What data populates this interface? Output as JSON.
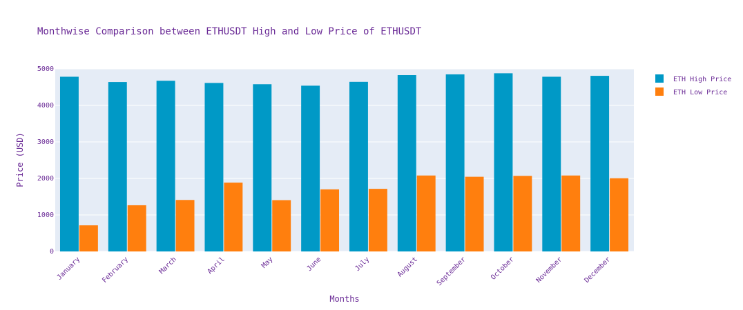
{
  "colors": {
    "text": "#6a2a96",
    "plot_bg": "#e5ecf6",
    "grid": "#ffffff",
    "high": "#0099c6",
    "low": "#ff7f0e"
  },
  "chart_data": {
    "type": "bar",
    "title": "Monthwise Comparison between ETHUSDT High and Low Price of ETHUSDT",
    "xlabel": "Months",
    "ylabel": "Price (USD)",
    "ylim": [
      0,
      5000
    ],
    "yticks": [
      "0",
      "1000",
      "2000",
      "3000",
      "4000",
      "5000"
    ],
    "grid": true,
    "legend_position": "top-right",
    "categories": [
      "January",
      "February",
      "March",
      "April",
      "May",
      "June",
      "July",
      "August",
      "September",
      "October",
      "November",
      "December"
    ],
    "series": [
      {
        "name": "ETH High Price",
        "color": "#0099c6",
        "values": [
          4785,
          4640,
          4675,
          4615,
          4580,
          4540,
          4645,
          4830,
          4850,
          4880,
          4785,
          4810
        ]
      },
      {
        "name": "ETH Low Price",
        "color": "#ff7f0e",
        "values": [
          715,
          1265,
          1410,
          1885,
          1405,
          1700,
          1715,
          2080,
          2045,
          2070,
          2080,
          2005
        ]
      }
    ]
  }
}
